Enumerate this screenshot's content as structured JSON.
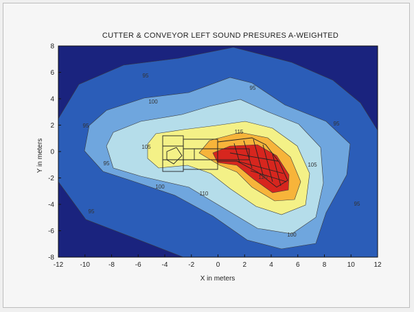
{
  "chart_data": {
    "type": "contour",
    "title": "CUTTER & CONVEYOR LEFT SOUND PRESURES A-WEIGHTED",
    "xlabel": "X in meters",
    "ylabel": "Y in meters",
    "xlim": [
      -12,
      12
    ],
    "ylim": [
      -8,
      8
    ],
    "xticks": [
      "-12",
      "-10",
      "-8",
      "-6",
      "-4",
      "-2",
      "0",
      "2",
      "4",
      "6",
      "8",
      "10",
      "12"
    ],
    "yticks": [
      "8",
      "6",
      "4",
      "2",
      "0",
      "-2",
      "-4",
      "-6",
      "-8"
    ],
    "levels": [
      {
        "value": 90,
        "color": "#1a237e"
      },
      {
        "value": 95,
        "color": "#2b5db8"
      },
      {
        "value": 100,
        "color": "#6fa6de"
      },
      {
        "value": 105,
        "color": "#b5ddea"
      },
      {
        "value": 110,
        "color": "#f4f187"
      },
      {
        "value": 115,
        "color": "#f7b43a"
      },
      {
        "value": 120,
        "color": "#d7261e"
      }
    ],
    "contour_labels": [
      "95",
      "95",
      "95",
      "95",
      "95",
      "95",
      "95",
      "100",
      "100",
      "100",
      "105",
      "105",
      "110",
      "115",
      "120"
    ]
  }
}
